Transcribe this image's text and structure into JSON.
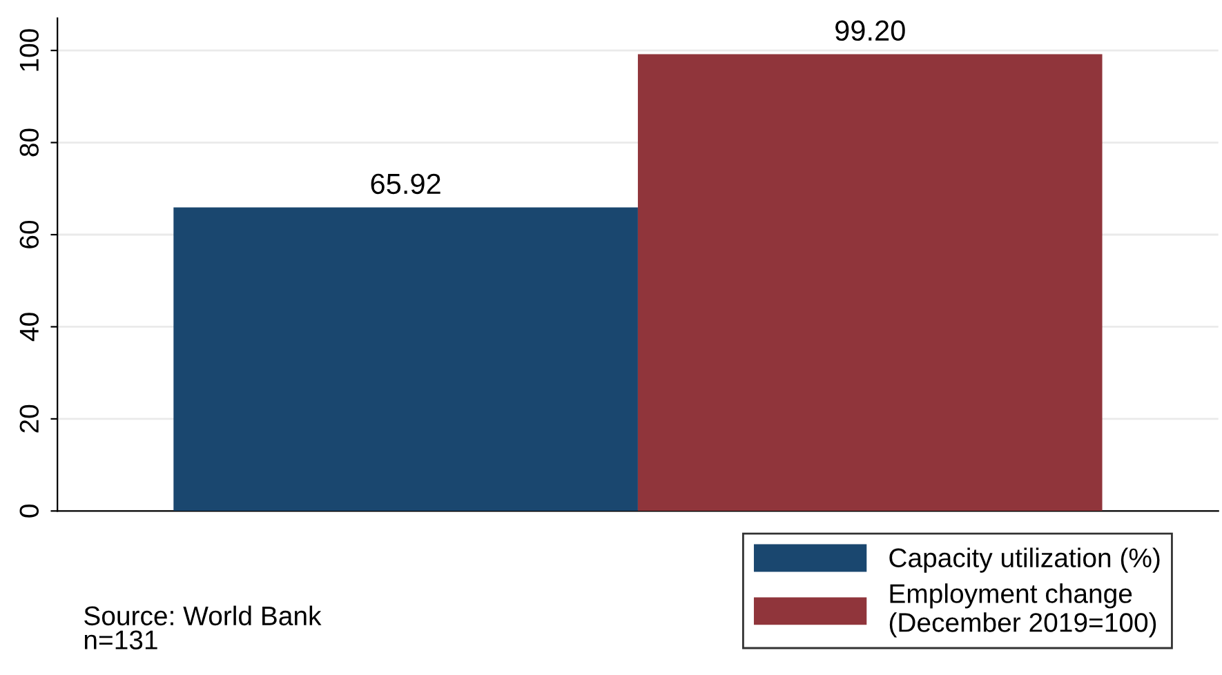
{
  "chart_data": {
    "type": "bar",
    "categories": [
      null
    ],
    "series": [
      {
        "name": "Capacity utilization (%)",
        "color": "#1a476f",
        "values": [
          65.92
        ]
      },
      {
        "name": "Employment change\n(December 2019=100)",
        "color": "#90353b",
        "values": [
          99.2
        ]
      }
    ],
    "value_labels": [
      [
        "65.92"
      ],
      [
        "99.20"
      ]
    ],
    "ylim": [
      0,
      107
    ],
    "yticks": [
      0,
      20,
      40,
      60,
      80,
      100
    ],
    "grid": "y",
    "legend": "bottom right",
    "annotations": [
      "Source: World Bank\nn=131"
    ]
  }
}
